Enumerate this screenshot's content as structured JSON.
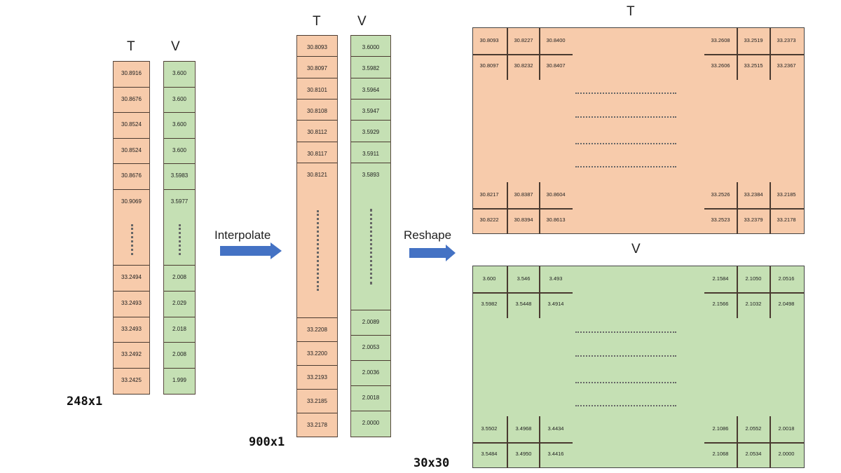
{
  "raw": {
    "size_label": "248x1",
    "t_header": "T",
    "v_header": "V",
    "t_top": [
      "30.8916",
      "30.8676",
      "30.8524",
      "30.8524",
      "30.8676",
      "30.9069"
    ],
    "v_top": [
      "3.600",
      "3.600",
      "3.600",
      "3.600",
      "3.5983",
      "3.5977"
    ],
    "t_bottom": [
      "33.2494",
      "33.2493",
      "33.2493",
      "33.2492",
      "33.2425"
    ],
    "v_bottom": [
      "2.008",
      "2.029",
      "2.018",
      "2.008",
      "1.999"
    ]
  },
  "interpolate_label": "Interpolate",
  "interp": {
    "size_label": "900x1",
    "t_header": "T",
    "v_header": "V",
    "t_top": [
      "30.8093",
      "30.8097",
      "30.8101",
      "30.8108",
      "30.8112",
      "30.8117",
      "30.8121"
    ],
    "v_top": [
      "3.6000",
      "3.5982",
      "3.5964",
      "3.5947",
      "3.5929",
      "3.5911",
      "3.5893"
    ],
    "t_bottom": [
      "33.2208",
      "33.2200",
      "33.2193",
      "33.2185",
      "33.2178"
    ],
    "v_bottom": [
      "2.0089",
      "2.0053",
      "2.0036",
      "2.0018",
      "2.0000"
    ]
  },
  "reshape_label": "Reshape",
  "reshaped": {
    "size_label": "30x30",
    "T": {
      "header": "T",
      "top_left": [
        [
          "30.8093",
          "30.8227",
          "30.8400"
        ],
        [
          "30.8097",
          "30.8232",
          "30.8407"
        ]
      ],
      "top_right": [
        [
          "33.2608",
          "33.2519",
          "33.2373"
        ],
        [
          "33.2606",
          "33.2515",
          "33.2367"
        ]
      ],
      "bottom_left": [
        [
          "30.8217",
          "30.8387",
          "30.8604"
        ],
        [
          "30.8222",
          "30.8394",
          "30.8613"
        ]
      ],
      "bottom_right": [
        [
          "33.2526",
          "33.2384",
          "33.2185"
        ],
        [
          "33.2523",
          "33.2379",
          "33.2178"
        ]
      ]
    },
    "V": {
      "header": "V",
      "top_left": [
        [
          "3.600",
          "3.546",
          "3.493"
        ],
        [
          "3.5982",
          "3.5448",
          "3.4914"
        ]
      ],
      "top_right": [
        [
          "2.1584",
          "2.1050",
          "2.0516"
        ],
        [
          "2.1566",
          "2.1032",
          "2.0498"
        ]
      ],
      "bottom_left": [
        [
          "3.5502",
          "3.4968",
          "3.4434"
        ],
        [
          "3.5484",
          "3.4950",
          "3.4416"
        ]
      ],
      "bottom_right": [
        [
          "2.1086",
          "2.0552",
          "2.0018"
        ],
        [
          "2.1068",
          "2.0534",
          "2.0000"
        ]
      ]
    }
  },
  "colors": {
    "T": "#f7cbab",
    "V": "#c5e0b4",
    "arrow": "#4472c4"
  }
}
